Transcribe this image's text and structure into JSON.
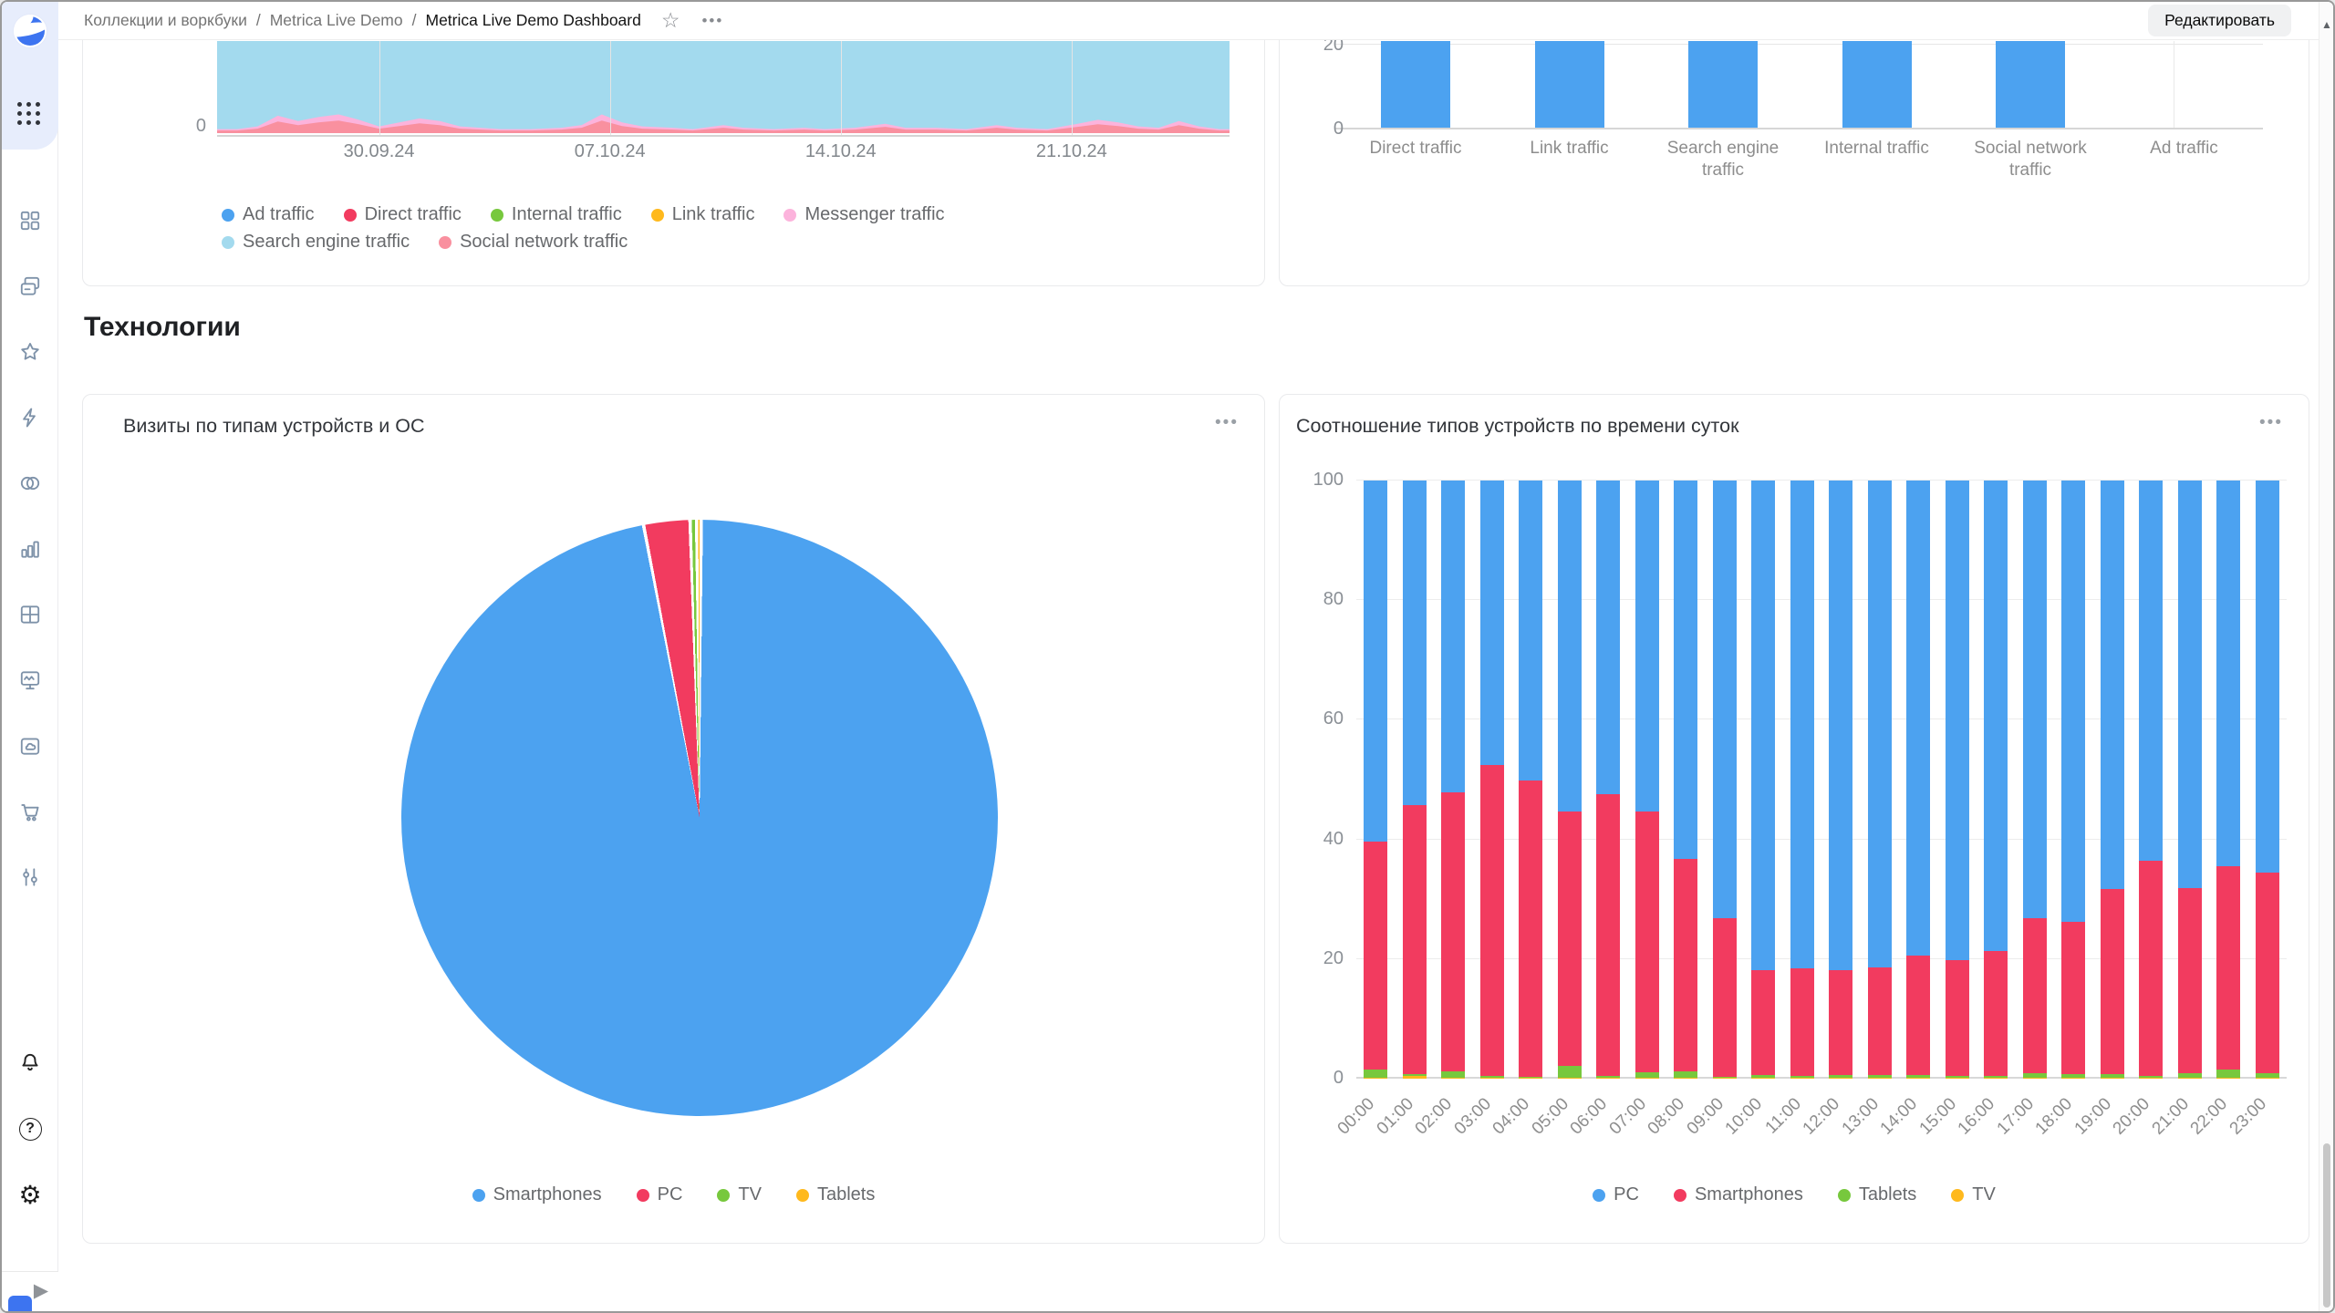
{
  "icons": {
    "star": "☆",
    "more": "•••",
    "up_arrow": "▲",
    "play": "▶",
    "question": "?",
    "gear": "⚙"
  },
  "header": {
    "breadcrumbs": [
      "Коллекции и воркбуки",
      "Metrica Live Demo",
      "Metrica Live Demo Dashboard"
    ],
    "separator": "/",
    "edit_button": "Редактировать"
  },
  "sidebar": {
    "items": [
      "navigation",
      "collections",
      "favorites",
      "editor",
      "connections",
      "charts",
      "dashboards",
      "monitoring",
      "storage",
      "marketplace",
      "services"
    ],
    "footer_items": [
      "notifications",
      "help",
      "settings"
    ]
  },
  "section": {
    "title": "Технологии"
  },
  "chart_data": [
    {
      "id": "traffic-by-source-area",
      "type": "area",
      "title": "",
      "x_ticks": [
        "30.09.24",
        "07.10.24",
        "14.10.24",
        "21.10.24"
      ],
      "x_tick_pos": [
        16,
        38.8,
        61.6,
        84.4
      ],
      "y_ticks": [
        0
      ],
      "legend": [
        "Ad traffic",
        "Direct traffic",
        "Internal traffic",
        "Link traffic",
        "Messenger traffic",
        "Search engine traffic",
        "Social network traffic"
      ],
      "legend_colors": {
        "Ad traffic": "#4ca2f0",
        "Direct traffic": "#f23b5f",
        "Internal traffic": "#77c83d",
        "Link traffic": "#ffb91d",
        "Messenger traffic": "#fcb3dc",
        "Search engine traffic": "#a3daee",
        "Social network traffic": "#f9909f"
      },
      "area_fill_color": "#a3daee",
      "note": "Chart top cropped by page scroll; Search engine traffic area fills the visible plot, Social network / Messenger traffic form small peaks near the zero line.",
      "social_profile": [
        [
          0,
          3
        ],
        [
          2,
          3
        ],
        [
          4,
          5
        ],
        [
          6,
          13
        ],
        [
          8,
          9
        ],
        [
          10,
          12
        ],
        [
          12,
          14
        ],
        [
          14,
          10
        ],
        [
          16,
          5
        ],
        [
          18,
          8
        ],
        [
          20,
          11
        ],
        [
          22,
          9
        ],
        [
          24,
          5
        ],
        [
          26,
          4
        ],
        [
          28,
          3
        ],
        [
          31,
          3
        ],
        [
          34,
          4
        ],
        [
          36,
          6
        ],
        [
          38,
          14
        ],
        [
          40,
          8
        ],
        [
          42,
          5
        ],
        [
          45,
          4
        ],
        [
          47,
          3
        ],
        [
          50,
          6
        ],
        [
          52,
          4
        ],
        [
          55,
          3
        ],
        [
          58,
          4
        ],
        [
          60,
          3
        ],
        [
          63,
          4
        ],
        [
          66,
          7
        ],
        [
          68,
          4
        ],
        [
          71,
          4
        ],
        [
          74,
          3
        ],
        [
          77,
          6
        ],
        [
          79,
          4
        ],
        [
          82,
          3
        ],
        [
          85,
          7
        ],
        [
          87,
          10
        ],
        [
          89,
          8
        ],
        [
          91,
          5
        ],
        [
          93,
          4
        ],
        [
          95,
          9
        ],
        [
          97,
          5
        ],
        [
          99,
          3
        ],
        [
          100,
          3
        ]
      ],
      "messenger_scale": 1.5
    },
    {
      "id": "traffic-by-source-totals",
      "type": "bar",
      "title": "",
      "categories": [
        "Direct traffic",
        "Link traffic",
        "Search engine traffic",
        "Internal traffic",
        "Social network traffic",
        "Ad traffic"
      ],
      "values": [
        null,
        null,
        null,
        null,
        null,
        0
      ],
      "bars_visible": [
        true,
        true,
        true,
        true,
        true,
        false
      ],
      "bar_color": "#4ca2f0",
      "y_ticks": [
        0,
        20
      ],
      "note": "Bars cropped by page scroll: five bars extend above the 20 gridline; Ad traffic shows no visible bar."
    },
    {
      "id": "visits-by-device-pie",
      "type": "pie",
      "title": "Визиты по типам устройств и ОС",
      "labels": [
        "Smartphones",
        "PC",
        "TV",
        "Tablets"
      ],
      "values_pct": [
        96.9,
        2.5,
        0.35,
        0.25
      ],
      "colors": [
        "#4ca2f0",
        "#f23b5f",
        "#77c83d",
        "#ffb91d"
      ],
      "legend_position": "bottom"
    },
    {
      "id": "device-share-by-hour",
      "type": "bar",
      "stacked": true,
      "percent": true,
      "title": "Соотношение типов устройств по времени суток",
      "categories": [
        "00:00",
        "01:00",
        "02:00",
        "03:00",
        "04:00",
        "05:00",
        "06:00",
        "07:00",
        "08:00",
        "09:00",
        "10:00",
        "11:00",
        "12:00",
        "13:00",
        "14:00",
        "15:00",
        "16:00",
        "17:00",
        "18:00",
        "19:00",
        "20:00",
        "21:00",
        "22:00",
        "23:00"
      ],
      "y_ticks": [
        0,
        20,
        40,
        60,
        80,
        100
      ],
      "ylim": [
        0,
        100
      ],
      "series": [
        {
          "name": "PC",
          "color": "#4ca2f0",
          "values": [
            60.4,
            54.3,
            52.2,
            47.6,
            50.2,
            55.4,
            52.5,
            55.4,
            63.2,
            73.2,
            81.9,
            81.6,
            81.9,
            81.4,
            79.4,
            80.1,
            78.6,
            73.1,
            73.7,
            68.3,
            63.6,
            68.1,
            64.4,
            65.6
          ]
        },
        {
          "name": "Smartphones",
          "color": "#f23b5f",
          "values": [
            38,
            45,
            46.5,
            52,
            49.5,
            42.5,
            47,
            43.5,
            35.5,
            26.5,
            17.5,
            18,
            17.5,
            18,
            20,
            19.5,
            21,
            26,
            25.5,
            31,
            36,
            31,
            34,
            33.5
          ]
        },
        {
          "name": "Tablets",
          "color": "#77c83d",
          "values": [
            1.5,
            0.3,
            1.2,
            0.3,
            0.2,
            2,
            0.4,
            1,
            1.2,
            0.2,
            0.5,
            0.3,
            0.5,
            0.5,
            0.5,
            0.3,
            0.3,
            0.8,
            0.7,
            0.6,
            0.3,
            0.8,
            1.5,
            0.8
          ]
        },
        {
          "name": "TV",
          "color": "#ffb91d",
          "values": [
            0.1,
            0.4,
            0.1,
            0.1,
            0.1,
            0.1,
            0.1,
            0.1,
            0.1,
            0.1,
            0.1,
            0.1,
            0.1,
            0.1,
            0.1,
            0.1,
            0.1,
            0.1,
            0.1,
            0.1,
            0.1,
            0.1,
            0.1,
            0.1
          ]
        }
      ],
      "stack_order_bottom_to_top": [
        "TV",
        "Tablets",
        "Smartphones",
        "PC"
      ],
      "legend_order": [
        "PC",
        "Smartphones",
        "Tablets",
        "TV"
      ]
    }
  ]
}
